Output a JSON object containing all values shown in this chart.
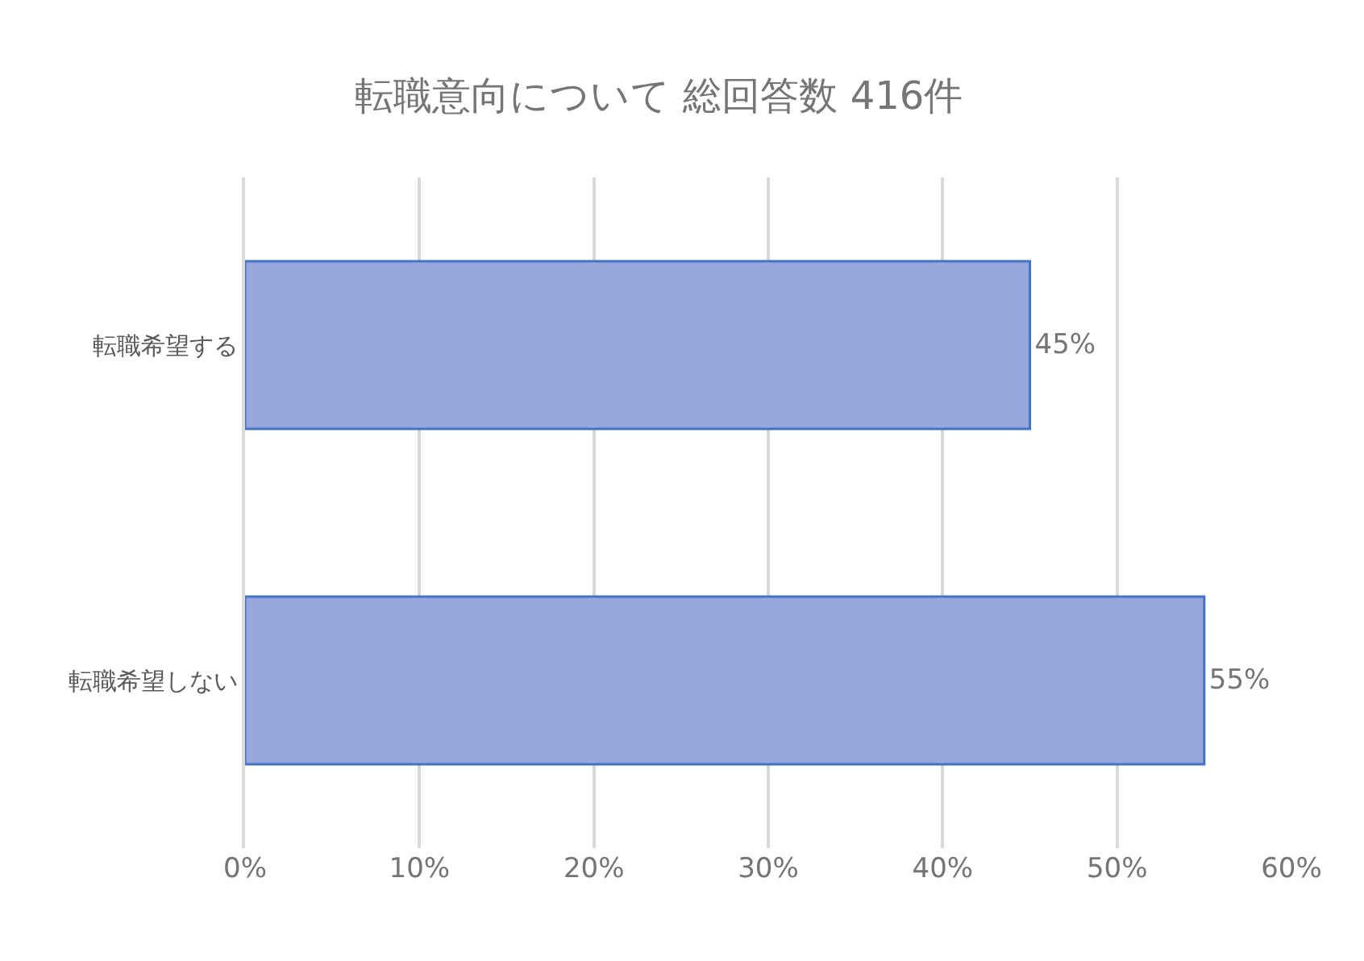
{
  "chart_data": {
    "type": "bar",
    "orientation": "horizontal",
    "title": "転職意向について 総回答数 416件",
    "categories": [
      "転職希望する",
      "転職希望しない"
    ],
    "values": [
      45,
      55
    ],
    "value_labels": [
      "45%",
      "55%"
    ],
    "color": "#97a9dc",
    "xlim": [
      0,
      60
    ],
    "xticks": [
      {
        "value": 0,
        "label": "0%"
      },
      {
        "value": 10,
        "label": "10%"
      },
      {
        "value": 20,
        "label": "20%"
      },
      {
        "value": 30,
        "label": "30%"
      },
      {
        "value": 40,
        "label": "40%"
      },
      {
        "value": 50,
        "label": "50%"
      },
      {
        "value": 60,
        "label": "60%"
      }
    ],
    "grid": "x"
  }
}
